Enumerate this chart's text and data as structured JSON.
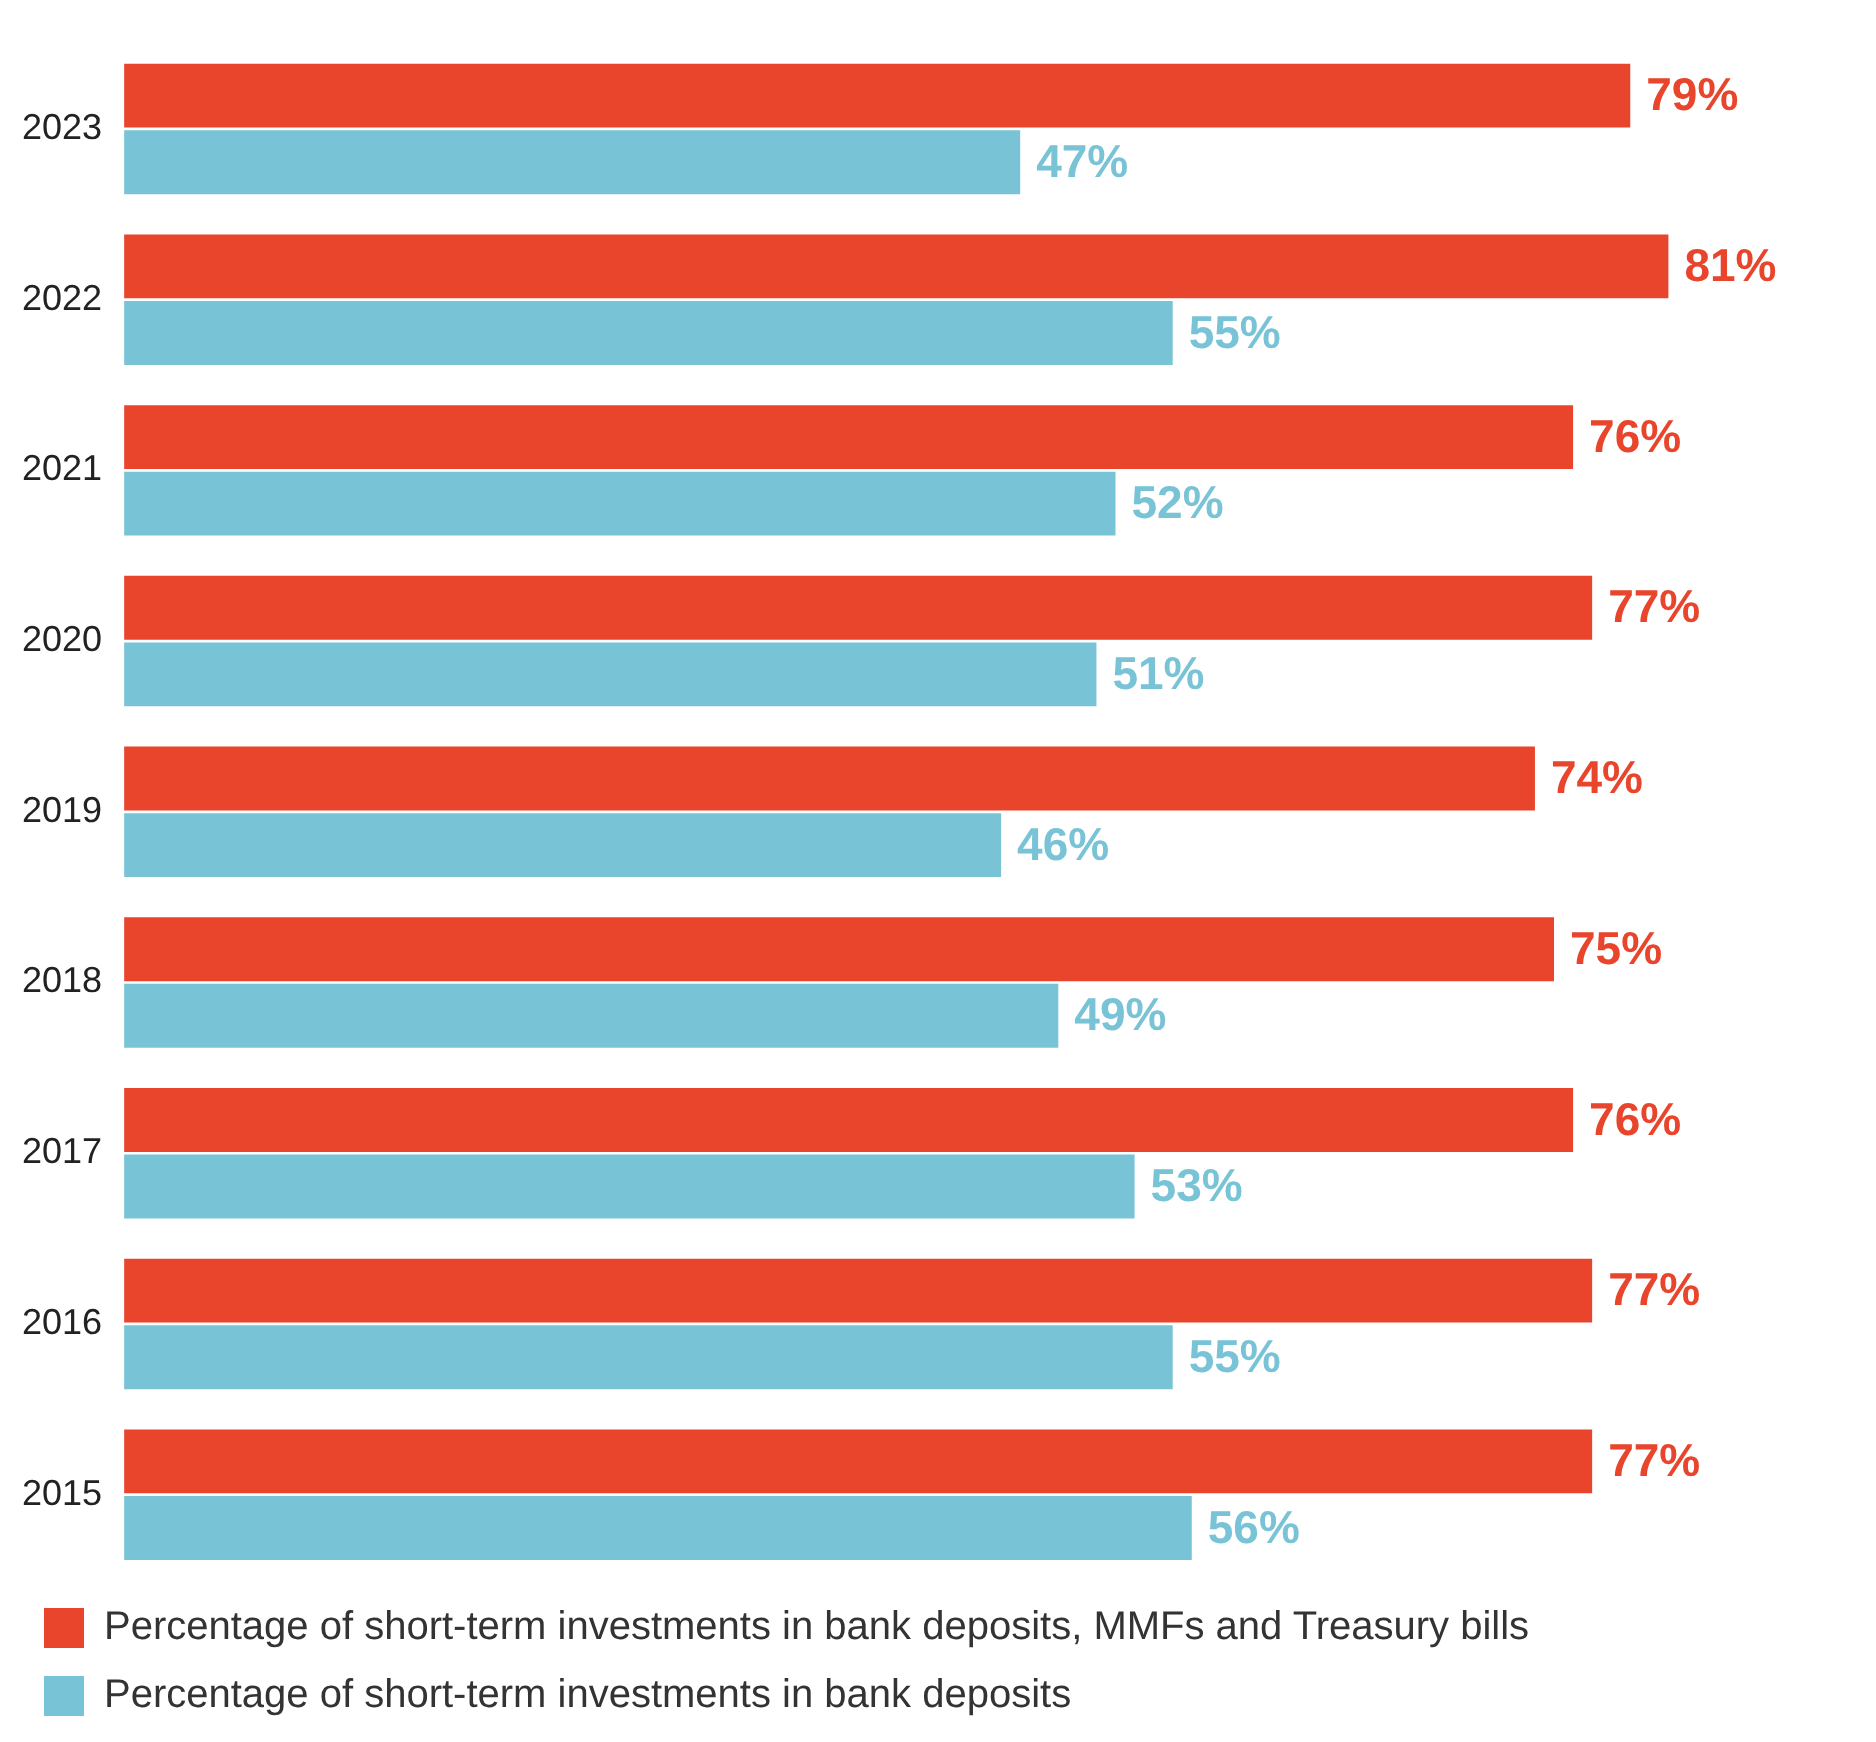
{
  "chart_data": {
    "type": "bar",
    "orientation": "horizontal",
    "categories": [
      "2023",
      "2022",
      "2021",
      "2020",
      "2019",
      "2018",
      "2017",
      "2016",
      "2015"
    ],
    "series": [
      {
        "name": "Percentage of short-term investments in bank deposits, MMFs and Treasury bills",
        "color": "#e8452c",
        "values": [
          79,
          81,
          76,
          77,
          74,
          75,
          76,
          77,
          77
        ],
        "value_labels": [
          "79%",
          "81%",
          "76%",
          "77%",
          "74%",
          "75%",
          "76%",
          "77%",
          "77%"
        ]
      },
      {
        "name": "Percentage of short-term investments in bank deposits",
        "color": "#78c3d6",
        "values": [
          47,
          55,
          52,
          51,
          46,
          49,
          53,
          55,
          56
        ],
        "value_labels": [
          "47%",
          "55%",
          "52%",
          "51%",
          "46%",
          "49%",
          "53%",
          "55%",
          "56%"
        ]
      }
    ],
    "legend": "bottom left"
  }
}
